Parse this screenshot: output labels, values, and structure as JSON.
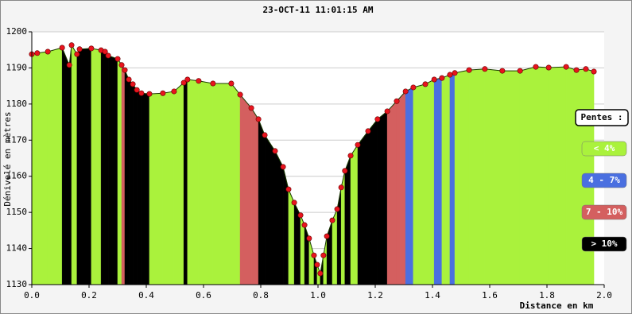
{
  "chart_data": {
    "type": "area",
    "title": "23-OCT-11 11:01:15 AM",
    "xlabel": "Distance en km",
    "ylabel": "Dénivelé en mètres",
    "x": [
      0.0,
      0.019,
      0.056,
      0.106,
      0.131,
      0.139,
      0.158,
      0.167,
      0.208,
      0.242,
      0.256,
      0.267,
      0.3,
      0.314,
      0.325,
      0.339,
      0.353,
      0.367,
      0.383,
      0.411,
      0.458,
      0.497,
      0.531,
      0.544,
      0.583,
      0.633,
      0.697,
      0.728,
      0.767,
      0.792,
      0.814,
      0.85,
      0.878,
      0.897,
      0.917,
      0.939,
      0.953,
      0.969,
      0.986,
      0.997,
      1.008,
      1.019,
      1.031,
      1.05,
      1.067,
      1.081,
      1.094,
      1.114,
      1.139,
      1.175,
      1.208,
      1.242,
      1.275,
      1.306,
      1.333,
      1.375,
      1.406,
      1.433,
      1.461,
      1.478,
      1.528,
      1.583,
      1.644,
      1.706,
      1.761,
      1.806,
      1.867,
      1.903,
      1.936,
      1.964
    ],
    "y": [
      1193.8,
      1194.1,
      1194.5,
      1195.6,
      1190.8,
      1196.3,
      1193.8,
      1195.2,
      1195.4,
      1194.9,
      1194.5,
      1193.4,
      1192.5,
      1190.8,
      1189.4,
      1186.8,
      1185.5,
      1183.9,
      1183.0,
      1182.8,
      1183.0,
      1183.5,
      1185.9,
      1186.8,
      1186.4,
      1185.7,
      1185.7,
      1182.6,
      1178.9,
      1175.8,
      1171.4,
      1167.0,
      1162.6,
      1156.4,
      1152.7,
      1149.2,
      1146.5,
      1142.8,
      1138.1,
      1135.5,
      1133.1,
      1138.1,
      1143.4,
      1147.8,
      1150.9,
      1156.9,
      1161.5,
      1165.7,
      1168.7,
      1172.5,
      1175.8,
      1178.0,
      1180.8,
      1183.5,
      1184.6,
      1185.5,
      1186.8,
      1187.2,
      1188.1,
      1188.6,
      1189.4,
      1189.7,
      1189.2,
      1189.2,
      1190.3,
      1190.1,
      1190.3,
      1189.4,
      1189.7,
      1189.0
    ],
    "segment_class": [
      0,
      0,
      0,
      3,
      3,
      0,
      3,
      3,
      0,
      3,
      3,
      3,
      0,
      2,
      3,
      3,
      3,
      3,
      3,
      0,
      0,
      0,
      3,
      0,
      0,
      0,
      0,
      2,
      2,
      3,
      3,
      3,
      3,
      0,
      3,
      0,
      3,
      0,
      3,
      0,
      3,
      0,
      3,
      0,
      3,
      0,
      3,
      0,
      3,
      3,
      3,
      2,
      2,
      1,
      0,
      0,
      1,
      0,
      1,
      0,
      0,
      0,
      0,
      0,
      0,
      0,
      0,
      0,
      0
    ],
    "legend": {
      "title": "Pentes :",
      "entries": [
        {
          "label": "< 4%",
          "color": "#aaf23c"
        },
        {
          "label": "4 - 7%",
          "color": "#4a6fe0"
        },
        {
          "label": "7 - 10%",
          "color": "#d45f5f"
        },
        {
          "label": "> 10%",
          "color": "#000000"
        }
      ]
    },
    "line_color": "#1a3a00",
    "marker_color": "#e8141e",
    "xlim": [
      0,
      2.0
    ],
    "ylim": [
      1130,
      1200
    ],
    "xticks": [
      {
        "value": 0,
        "label": "0.0"
      },
      0.2,
      0.4,
      0.6,
      0.8,
      {
        "value": 1,
        "label": "1.0"
      },
      1.2,
      1.4,
      1.6,
      1.8,
      {
        "value": 2,
        "label": "2.0"
      }
    ],
    "yticks": [
      1130,
      1140,
      1150,
      1160,
      1170,
      1180,
      1190,
      1200
    ],
    "grid": true
  }
}
